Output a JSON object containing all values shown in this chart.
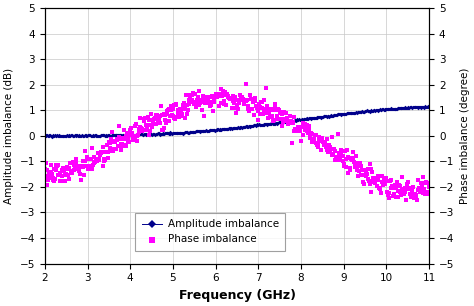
{
  "title": "",
  "xlabel": "Frequency (GHz)",
  "ylabel_left": "Amplitude imbalance (dB)",
  "ylabel_right": "Phase imbalance (degree)",
  "xlim": [
    2,
    11
  ],
  "ylim": [
    -5,
    5
  ],
  "xticks": [
    2,
    3,
    4,
    5,
    6,
    7,
    8,
    9,
    10,
    11
  ],
  "yticks": [
    -5,
    -4,
    -3,
    -2,
    -1,
    0,
    1,
    2,
    3,
    4,
    5
  ],
  "amp_color": "#00008B",
  "phase_color": "#FF00FF",
  "amp_label": "Amplitude imbalance",
  "phase_label": "Phase imbalance",
  "background_color": "#ffffff",
  "grid_color": "#c8c8c8",
  "figsize": [
    4.74,
    3.06
  ],
  "dpi": 100,
  "phase_key_points_x": [
    2,
    4.5,
    6.0,
    7.5,
    11
  ],
  "phase_key_points_y": [
    -1.5,
    0.5,
    1.4,
    0.8,
    -2.0
  ],
  "amp_key_points_x": [
    2,
    3,
    4,
    5,
    6,
    7,
    8,
    9,
    10,
    11
  ],
  "amp_key_points_y": [
    0.0,
    0.02,
    0.05,
    0.1,
    0.2,
    0.4,
    0.7,
    0.85,
    1.0,
    1.15
  ]
}
